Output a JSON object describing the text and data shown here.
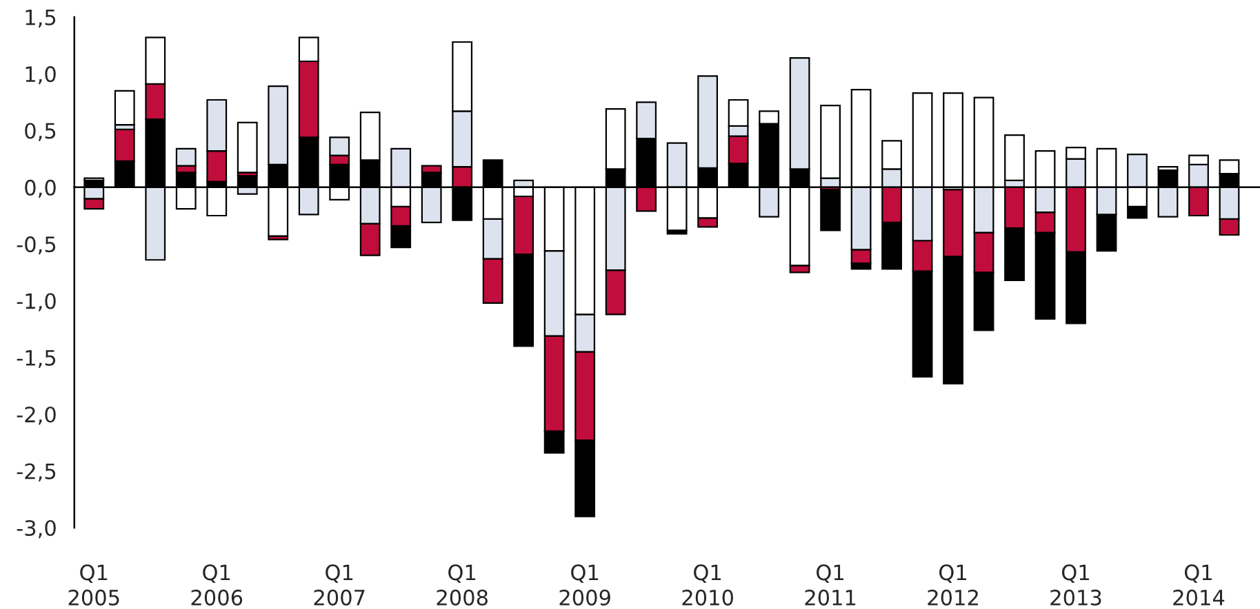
{
  "chart_data": {
    "type": "bar",
    "stacked": true,
    "categories": [
      "Q1\n2005",
      null,
      null,
      null,
      "Q1\n2006",
      null,
      null,
      null,
      "Q1\n2007",
      null,
      null,
      null,
      "Q1\n2008",
      null,
      null,
      null,
      "Q1\n2009",
      null,
      null,
      null,
      "Q1\n2010",
      null,
      null,
      null,
      "Q1\n2011",
      null,
      null,
      null,
      "Q1\n2012",
      null,
      null,
      null,
      "Q1\n2013",
      null,
      null,
      null,
      "Q1\n2014",
      null
    ],
    "series": [
      {
        "color": "#000000",
        "values": [
          0.06,
          0.23,
          0.6,
          0.13,
          0.05,
          0.1,
          0.2,
          0.44,
          0.2,
          0.24,
          -0.19,
          0.13,
          -0.29,
          0.24,
          -0.81,
          -0.19,
          -0.67,
          0.16,
          0.43,
          -0.03,
          0.17,
          0.21,
          0.56,
          0.16,
          -0.36,
          -0.05,
          -0.41,
          -0.93,
          -1.12,
          -0.51,
          -0.46,
          -0.76,
          -0.63,
          -0.32,
          -0.1,
          0.15,
          null,
          0.12
        ]
      },
      {
        "color": "#c00d3b",
        "values": [
          -0.09,
          0.28,
          0.31,
          0.06,
          0.27,
          0.03,
          -0.03,
          0.67,
          0.08,
          -0.28,
          -0.17,
          0.06,
          0.18,
          -0.39,
          -0.51,
          -0.84,
          -0.78,
          -0.39,
          -0.21,
          null,
          -0.08,
          0.24,
          null,
          -0.06,
          -0.02,
          -0.12,
          -0.31,
          -0.27,
          -0.59,
          -0.35,
          -0.36,
          -0.18,
          -0.57,
          null,
          null,
          null,
          -0.25,
          -0.14
        ]
      },
      {
        "color": "#dde3ee",
        "values": [
          -0.1,
          0.04,
          -0.64,
          0.15,
          0.45,
          -0.06,
          0.69,
          -0.24,
          0.16,
          -0.32,
          0.34,
          -0.31,
          0.49,
          -0.35,
          0.06,
          -0.75,
          -0.33,
          -0.73,
          0.32,
          0.39,
          0.81,
          0.09,
          -0.26,
          0.98,
          0.08,
          -0.55,
          0.16,
          -0.47,
          -0.02,
          -0.4,
          0.06,
          -0.22,
          0.25,
          -0.24,
          0.29,
          -0.26,
          0.2,
          -0.28
        ]
      },
      {
        "color": "#ffffff",
        "values": [
          0.02,
          0.3,
          0.41,
          -0.19,
          -0.25,
          0.44,
          -0.43,
          0.21,
          -0.11,
          0.42,
          -0.17,
          null,
          0.61,
          -0.28,
          -0.08,
          -0.56,
          -1.12,
          0.53,
          null,
          -0.38,
          -0.27,
          0.23,
          0.11,
          -0.69,
          0.64,
          0.86,
          0.25,
          0.83,
          0.83,
          0.79,
          0.4,
          0.32,
          0.1,
          0.34,
          -0.17,
          0.03,
          0.08,
          0.12
        ]
      }
    ],
    "ylim": [
      -3.0,
      1.5
    ],
    "yticks": [
      {
        "value": -3.0,
        "label": "-3,0"
      },
      {
        "value": -2.5,
        "label": "-2,5"
      },
      {
        "value": -2.0,
        "label": "-2,0"
      },
      {
        "value": -1.5,
        "label": "-1,5"
      },
      {
        "value": -1.0,
        "label": "-1,0"
      },
      {
        "value": -0.5,
        "label": "-0,5"
      },
      {
        "value": 0.0,
        "label": "0,0"
      },
      {
        "value": 0.5,
        "label": "0,5"
      },
      {
        "value": 1.0,
        "label": "1,0"
      },
      {
        "value": 1.5,
        "label": "1,5"
      }
    ],
    "legend": false
  }
}
